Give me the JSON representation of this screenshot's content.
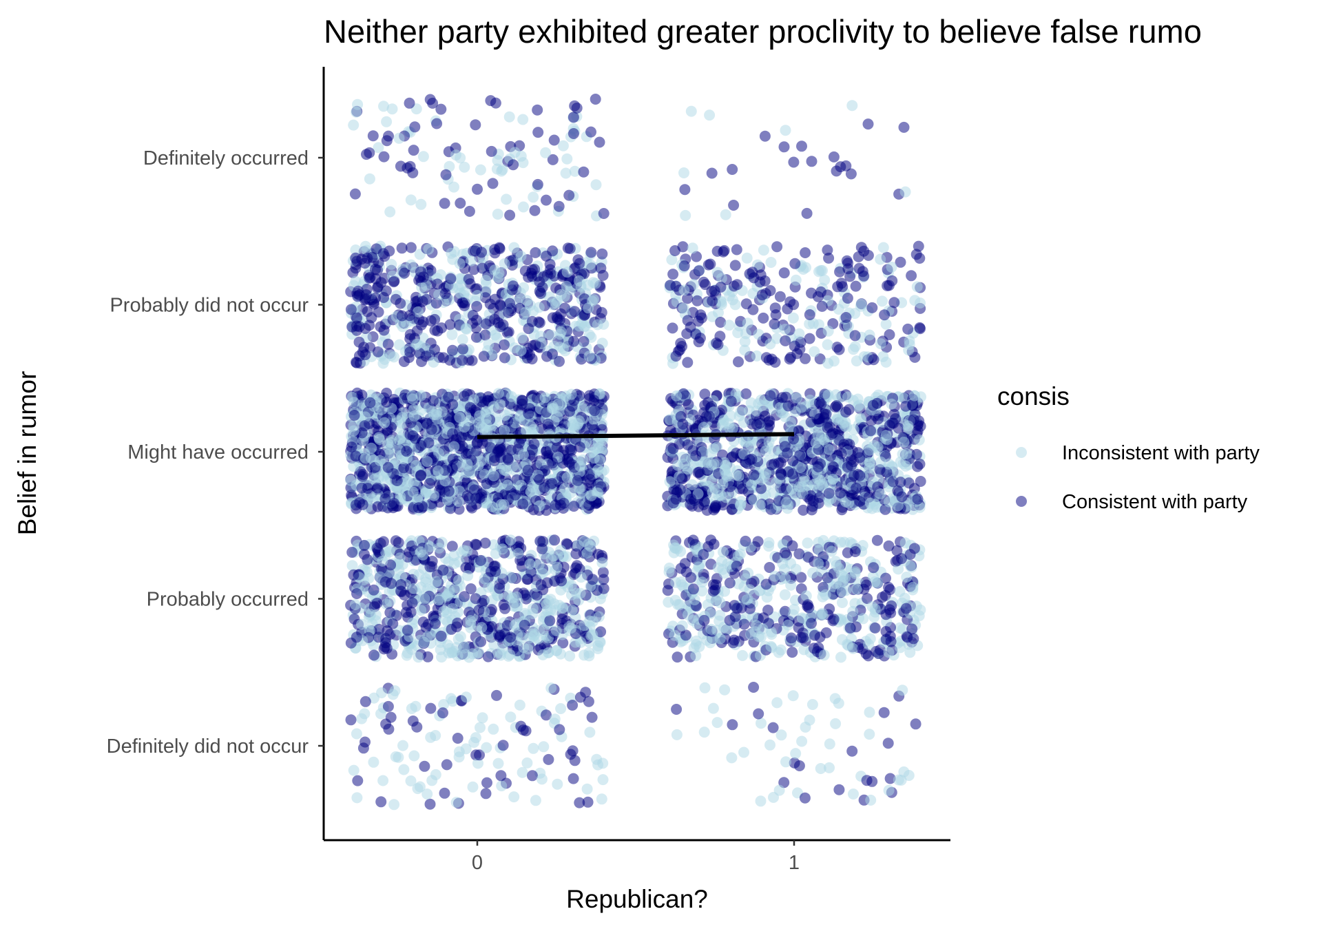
{
  "chart_data": {
    "type": "scatter",
    "jitter": true,
    "title": "Neither party exhibited greater proclivity to believe false rumo",
    "xlabel": "Republican?",
    "ylabel": "Belief in rumor",
    "x_ticks": [
      "0",
      "1"
    ],
    "x_range": [
      -0.49,
      1.49
    ],
    "y_categories": [
      "Definitely did not occur",
      "Probably occurred",
      "Might have occurred",
      "Probably did not occur",
      "Definitely occurred"
    ],
    "grid": false,
    "legend": {
      "title": "consis",
      "placement": "right",
      "entries": [
        {
          "label": "Inconsistent with party",
          "color": "#ADD8E6"
        },
        {
          "label": "Consistent with party",
          "color": "#000080"
        }
      ]
    },
    "point_opacity": 0.5,
    "counts": {
      "x0": {
        "Definitely did not occur": [
          75,
          50
        ],
        "Probably occurred": [
          420,
          330
        ],
        "Might have occurred": [
          760,
          740
        ],
        "Probably did not occur": [
          260,
          340
        ],
        "Definitely occurred": [
          55,
          55
        ]
      },
      "x1": {
        "Definitely did not occur": [
          40,
          20
        ],
        "Probably occurred": [
          300,
          220
        ],
        "Might have occurred": [
          520,
          540
        ],
        "Probably did not occur": [
          120,
          170
        ],
        "Definitely occurred": [
          8,
          18
        ]
      }
    },
    "series": [
      {
        "name": "fit",
        "type": "line",
        "color": "#000000",
        "x": [
          0,
          1
        ],
        "y": [
          2.1,
          2.12
        ]
      }
    ]
  }
}
